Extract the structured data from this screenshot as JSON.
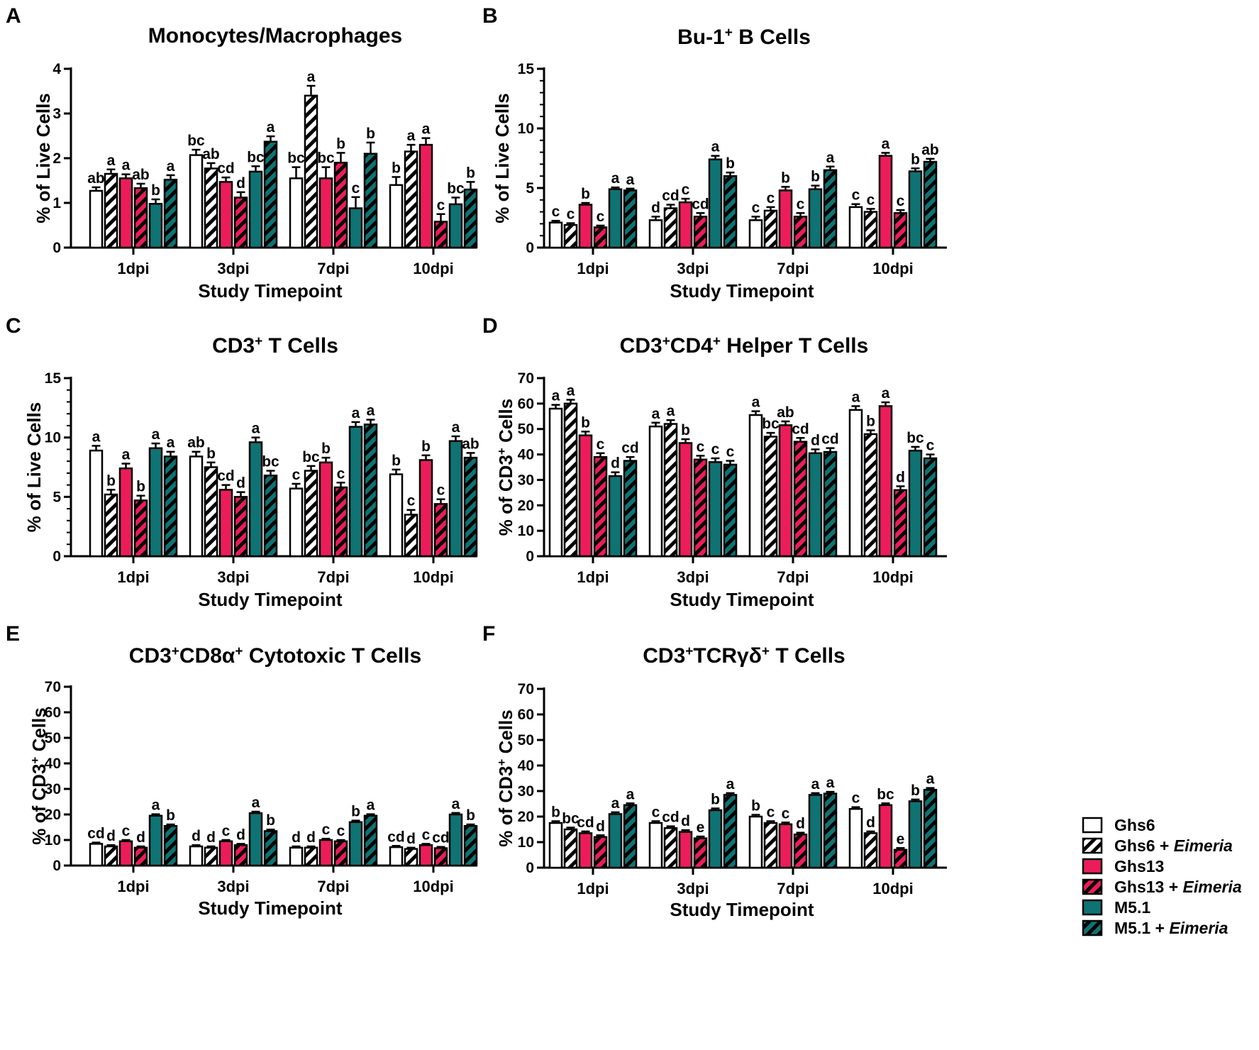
{
  "colors": {
    "Ghs6": "#ffffff",
    "Ghs13": "#ec1c5b",
    "M5.1": "#0f7373",
    "stroke": "#000000"
  },
  "legend": {
    "items": [
      {
        "name": "Ghs6",
        "suffix": "",
        "color": "#ffffff",
        "hatched": false
      },
      {
        "name": "Ghs6 + ",
        "suffix": "Eimeria",
        "color": "#ffffff",
        "hatched": true
      },
      {
        "name": "Ghs13",
        "suffix": "",
        "color": "#ec1c5b",
        "hatched": false
      },
      {
        "name": "Ghs13 + ",
        "suffix": "Eimeria",
        "color": "#ec1c5b",
        "hatched": true
      },
      {
        "name": "M5.1",
        "suffix": "",
        "color": "#0f7373",
        "hatched": false
      },
      {
        "name": "M5.1 + ",
        "suffix": "Eimeria",
        "color": "#0f7373",
        "hatched": true
      }
    ]
  },
  "chart_data": [
    {
      "panel": "A",
      "type": "bar",
      "title": "Monocytes/Macrophages",
      "title_sup": [],
      "xlabel": "Study Timepoint",
      "ylabel": "% of Live Cells",
      "ylim": [
        0,
        4
      ],
      "yticks": [
        0,
        1,
        2,
        3,
        4
      ],
      "minor_per_major": 0,
      "categories": [
        "1dpi",
        "3dpi",
        "7dpi",
        "10dpi"
      ],
      "series": [
        {
          "name": "Ghs6",
          "values": [
            1.27,
            2.07,
            1.55,
            1.4
          ],
          "errors": [
            0.08,
            0.12,
            0.25,
            0.18
          ],
          "labels": [
            "ab",
            "bc",
            "bc",
            "b"
          ]
        },
        {
          "name": "Ghs6 + Eimeria",
          "values": [
            1.65,
            1.77,
            3.4,
            2.15
          ],
          "errors": [
            0.1,
            0.12,
            0.22,
            0.15
          ],
          "labels": [
            "a",
            "ab",
            "a",
            "a"
          ]
        },
        {
          "name": "Ghs13",
          "values": [
            1.55,
            1.47,
            1.55,
            2.3
          ],
          "errors": [
            0.09,
            0.1,
            0.25,
            0.15
          ],
          "labels": [
            "a",
            "cd",
            "bc",
            "a"
          ]
        },
        {
          "name": "Ghs13 + Eimeria",
          "values": [
            1.33,
            1.12,
            1.9,
            0.58
          ],
          "errors": [
            0.1,
            0.12,
            0.22,
            0.17
          ],
          "labels": [
            "ab",
            "d",
            "b",
            "c"
          ]
        },
        {
          "name": "M5.1",
          "values": [
            0.98,
            1.7,
            0.88,
            0.97
          ],
          "errors": [
            0.1,
            0.12,
            0.25,
            0.15
          ],
          "labels": [
            "b",
            "bc",
            "c",
            "bc"
          ]
        },
        {
          "name": "M5.1 + Eimeria",
          "values": [
            1.52,
            2.37,
            2.1,
            1.3
          ],
          "errors": [
            0.1,
            0.12,
            0.25,
            0.17
          ],
          "labels": [
            "a",
            "a",
            "b",
            "b"
          ]
        }
      ]
    },
    {
      "panel": "B",
      "type": "bar",
      "title": "Bu-1",
      "title_sup": [
        "+",
        " B Cells"
      ],
      "xlabel": "Study Timepoint",
      "ylabel": "% of Live Cells",
      "ylim": [
        0,
        15
      ],
      "yticks": [
        0,
        5,
        10,
        15
      ],
      "minor_per_major": 4,
      "categories": [
        "1dpi",
        "3dpi",
        "7dpi",
        "10dpi"
      ],
      "series": [
        {
          "name": "Ghs6",
          "values": [
            2.1,
            2.3,
            2.3,
            3.4
          ],
          "errors": [
            0.15,
            0.3,
            0.3,
            0.25
          ],
          "labels": [
            "c",
            "d",
            "c",
            "c"
          ]
        },
        {
          "name": "Ghs6 + Eimeria",
          "values": [
            1.9,
            3.3,
            3.1,
            3.0
          ],
          "errors": [
            0.15,
            0.3,
            0.3,
            0.25
          ],
          "labels": [
            "c",
            "cd",
            "c",
            "c"
          ]
        },
        {
          "name": "Ghs13",
          "values": [
            3.6,
            3.8,
            4.8,
            7.7
          ],
          "errors": [
            0.15,
            0.3,
            0.3,
            0.25
          ],
          "labels": [
            "b",
            "c",
            "b",
            "a"
          ]
        },
        {
          "name": "Ghs13 + Eimeria",
          "values": [
            1.7,
            2.6,
            2.6,
            2.9
          ],
          "errors": [
            0.15,
            0.3,
            0.3,
            0.25
          ],
          "labels": [
            "c",
            "cd",
            "c",
            "c"
          ]
        },
        {
          "name": "M5.1",
          "values": [
            4.9,
            7.4,
            4.9,
            6.4
          ],
          "errors": [
            0.15,
            0.3,
            0.3,
            0.25
          ],
          "labels": [
            "a",
            "a",
            "b",
            "b"
          ]
        },
        {
          "name": "M5.1 + Eimeria",
          "values": [
            4.8,
            6.0,
            6.5,
            7.2
          ],
          "errors": [
            0.15,
            0.3,
            0.3,
            0.25
          ],
          "labels": [
            "a",
            "b",
            "a",
            "ab"
          ]
        }
      ]
    },
    {
      "panel": "C",
      "type": "bar",
      "title": "CD3",
      "title_sup": [
        "+",
        " T Cells"
      ],
      "xlabel": "Study Timepoint",
      "ylabel": "% of Live Cells",
      "ylim": [
        0,
        15
      ],
      "yticks": [
        0,
        5,
        10,
        15
      ],
      "minor_per_major": 4,
      "categories": [
        "1dpi",
        "3dpi",
        "7dpi",
        "10dpi"
      ],
      "series": [
        {
          "name": "Ghs6",
          "values": [
            8.9,
            8.4,
            5.7,
            6.9
          ],
          "errors": [
            0.4,
            0.4,
            0.4,
            0.4
          ],
          "labels": [
            "a",
            "ab",
            "c",
            "b"
          ]
        },
        {
          "name": "Ghs6 + Eimeria",
          "values": [
            5.2,
            7.5,
            7.2,
            3.5
          ],
          "errors": [
            0.4,
            0.4,
            0.4,
            0.4
          ],
          "labels": [
            "b",
            "b",
            "bc",
            "c"
          ]
        },
        {
          "name": "Ghs13",
          "values": [
            7.4,
            5.6,
            7.9,
            8.1
          ],
          "errors": [
            0.4,
            0.4,
            0.4,
            0.4
          ],
          "labels": [
            "a",
            "cd",
            "b",
            "b"
          ]
        },
        {
          "name": "Ghs13 + Eimeria",
          "values": [
            4.7,
            5.0,
            5.8,
            4.4
          ],
          "errors": [
            0.4,
            0.4,
            0.4,
            0.4
          ],
          "labels": [
            "b",
            "d",
            "c",
            "c"
          ]
        },
        {
          "name": "M5.1",
          "values": [
            9.1,
            9.6,
            10.9,
            9.7
          ],
          "errors": [
            0.4,
            0.4,
            0.4,
            0.4
          ],
          "labels": [
            "a",
            "a",
            "a",
            "a"
          ]
        },
        {
          "name": "M5.1 + Eimeria",
          "values": [
            8.4,
            6.8,
            11.1,
            8.3
          ],
          "errors": [
            0.4,
            0.4,
            0.4,
            0.4
          ],
          "labels": [
            "a",
            "bc",
            "a",
            "ab"
          ]
        }
      ]
    },
    {
      "panel": "D",
      "type": "bar",
      "title": "CD3",
      "title_sup": [
        "+",
        "CD4",
        "+",
        " Helper T Cells"
      ],
      "xlabel": "Study Timepoint",
      "ylabel": "% of CD3+ Cells",
      "ylim": [
        0,
        70
      ],
      "yticks": [
        0,
        10,
        20,
        30,
        40,
        50,
        60,
        70
      ],
      "minor_per_major": 0,
      "categories": [
        "1dpi",
        "3dpi",
        "7dpi",
        "10dpi"
      ],
      "series": [
        {
          "name": "Ghs6",
          "values": [
            58.0,
            51.0,
            55.5,
            57.5
          ],
          "errors": [
            1.5,
            1.5,
            1.5,
            1.5
          ],
          "labels": [
            "a",
            "a",
            "a",
            "a"
          ]
        },
        {
          "name": "Ghs6 + Eimeria",
          "values": [
            60.0,
            52.0,
            47.0,
            48.0
          ],
          "errors": [
            1.5,
            1.5,
            1.5,
            1.5
          ],
          "labels": [
            "a",
            "a",
            "bc",
            "b"
          ]
        },
        {
          "name": "Ghs13",
          "values": [
            47.5,
            44.5,
            51.5,
            59.0
          ],
          "errors": [
            1.5,
            1.5,
            1.5,
            1.5
          ],
          "labels": [
            "b",
            "b",
            "ab",
            "a"
          ]
        },
        {
          "name": "Ghs13 + Eimeria",
          "values": [
            39.0,
            38.0,
            45.0,
            26.0
          ],
          "errors": [
            1.5,
            1.5,
            1.5,
            1.5
          ],
          "labels": [
            "c",
            "c",
            "cd",
            "d"
          ]
        },
        {
          "name": "M5.1",
          "values": [
            31.5,
            37.0,
            40.5,
            41.5
          ],
          "errors": [
            1.5,
            1.5,
            1.5,
            1.5
          ],
          "labels": [
            "d",
            "c",
            "d",
            "bc"
          ]
        },
        {
          "name": "M5.1 + Eimeria",
          "values": [
            37.5,
            36.0,
            41.0,
            38.5
          ],
          "errors": [
            1.5,
            1.5,
            1.5,
            1.5
          ],
          "labels": [
            "cd",
            "c",
            "cd",
            "c"
          ]
        }
      ]
    },
    {
      "panel": "E",
      "type": "bar",
      "title": "CD3",
      "title_sup": [
        "+",
        "CD8α",
        "+",
        " Cytotoxic T Cells"
      ],
      "xlabel": "Study Timepoint",
      "ylabel": "% of CD3+ Cells",
      "ylim": [
        0,
        70
      ],
      "yticks": [
        0,
        10,
        20,
        30,
        40,
        50,
        60,
        70
      ],
      "minor_per_major": 0,
      "categories": [
        "1dpi",
        "3dpi",
        "7dpi",
        "10dpi"
      ],
      "series": [
        {
          "name": "Ghs6",
          "values": [
            8.5,
            7.5,
            7.0,
            7.2
          ],
          "errors": [
            0.5,
            0.5,
            0.5,
            0.5
          ],
          "labels": [
            "cd",
            "d",
            "d",
            "cd"
          ]
        },
        {
          "name": "Ghs6 + Eimeria",
          "values": [
            7.5,
            7.0,
            7.0,
            6.5
          ],
          "errors": [
            0.5,
            0.5,
            0.5,
            0.5
          ],
          "labels": [
            "d",
            "d",
            "d",
            "d"
          ]
        },
        {
          "name": "Ghs13",
          "values": [
            9.5,
            9.5,
            10.0,
            8.0
          ],
          "errors": [
            0.5,
            0.5,
            0.5,
            0.5
          ],
          "labels": [
            "c",
            "c",
            "c",
            "c"
          ]
        },
        {
          "name": "Ghs13 + Eimeria",
          "values": [
            7.0,
            8.0,
            9.5,
            6.8
          ],
          "errors": [
            0.5,
            0.5,
            0.5,
            0.5
          ],
          "labels": [
            "d",
            "d",
            "c",
            "cd"
          ]
        },
        {
          "name": "M5.1",
          "values": [
            19.5,
            20.5,
            17.0,
            20.0
          ],
          "errors": [
            0.6,
            0.6,
            0.6,
            0.6
          ],
          "labels": [
            "a",
            "a",
            "b",
            "a"
          ]
        },
        {
          "name": "M5.1 + Eimeria",
          "values": [
            15.5,
            13.5,
            19.5,
            15.5
          ],
          "errors": [
            0.6,
            0.6,
            0.6,
            0.6
          ],
          "labels": [
            "b",
            "b",
            "a",
            "b"
          ]
        }
      ]
    },
    {
      "panel": "F",
      "type": "bar",
      "title": "CD3",
      "title_sup": [
        "+",
        "TCRγδ",
        "+",
        " T Cells"
      ],
      "xlabel": "Study Timepoint",
      "ylabel": "% of CD3+ Cells",
      "ylim": [
        0,
        70
      ],
      "yticks": [
        0,
        10,
        20,
        30,
        40,
        50,
        60,
        70
      ],
      "minor_per_major": 0,
      "categories": [
        "1dpi",
        "3dpi",
        "7dpi",
        "10dpi"
      ],
      "series": [
        {
          "name": "Ghs6",
          "values": [
            17.5,
            17.5,
            20.0,
            23.0
          ],
          "errors": [
            0.7,
            0.7,
            0.7,
            0.7
          ],
          "labels": [
            "b",
            "c",
            "b",
            "c"
          ]
        },
        {
          "name": "Ghs6 + Eimeria",
          "values": [
            15.0,
            15.5,
            17.5,
            13.5
          ],
          "errors": [
            0.7,
            0.7,
            0.7,
            0.7
          ],
          "labels": [
            "bc",
            "cd",
            "c",
            "d"
          ]
        },
        {
          "name": "Ghs13",
          "values": [
            13.5,
            14.0,
            17.0,
            24.5
          ],
          "errors": [
            0.7,
            0.7,
            0.7,
            0.7
          ],
          "labels": [
            "cd",
            "d",
            "c",
            "bc"
          ]
        },
        {
          "name": "Ghs13 + Eimeria",
          "values": [
            12.0,
            11.5,
            13.0,
            7.0
          ],
          "errors": [
            0.7,
            0.7,
            0.7,
            0.7
          ],
          "labels": [
            "d",
            "e",
            "d",
            "e"
          ]
        },
        {
          "name": "M5.1",
          "values": [
            21.0,
            22.5,
            28.5,
            26.0
          ],
          "errors": [
            0.7,
            0.7,
            0.7,
            0.7
          ],
          "labels": [
            "a",
            "b",
            "a",
            "b"
          ]
        },
        {
          "name": "M5.1 + Eimeria",
          "values": [
            24.5,
            28.5,
            29.0,
            30.5
          ],
          "errors": [
            0.7,
            0.7,
            0.7,
            0.7
          ],
          "labels": [
            "a",
            "a",
            "a",
            "a"
          ]
        }
      ]
    }
  ]
}
